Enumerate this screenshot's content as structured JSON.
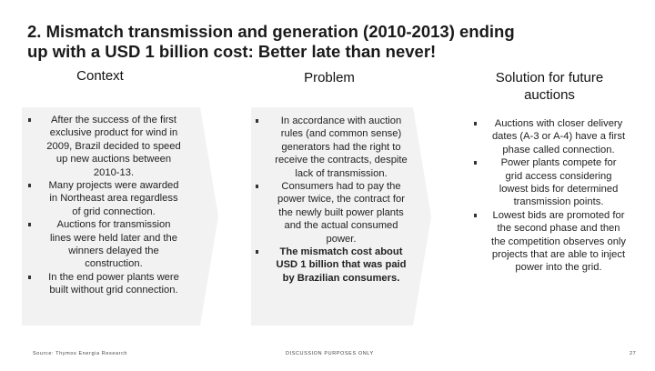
{
  "slide": {
    "title_line1": "2. Mismatch transmission and generation (2010-2013) ending",
    "title_line2": "up with a USD 1 billion cost: Better late than never!",
    "page_number": "27"
  },
  "context": {
    "heading": "Context",
    "bullets": [
      "After the success of the first exclusive product for wind in 2009, Brazil decided to speed up new auctions between 2010-13.",
      "Many projects were awarded in Northeast area regardless of grid connection.",
      "Auctions for transmission lines were held later and the winners delayed the construction.",
      "In the end power plants were built without grid connection."
    ]
  },
  "problem": {
    "heading": "Problem",
    "bullets": [
      "In accordance with auction rules (and common sense) generators had the right to receive the contracts, despite lack of transmission.",
      "Consumers had to pay the power twice, the contract for the newly built power plants and the actual consumed power.",
      "The mismatch cost about USD 1 billion that was paid by Brazilian consumers."
    ]
  },
  "solution": {
    "heading_line1": "Solution for future",
    "heading_line2": "auctions",
    "bullets": [
      "Auctions with closer delivery dates (A-3 or A-4) have a first phase called connection.",
      "Power plants compete for grid access considering lowest bids for determined transmission points.",
      "Lowest bids are promoted for the second phase and then the competition observes only projects that are able to inject power into the grid."
    ]
  },
  "footer": {
    "source": "Source: Thymos Energia Research",
    "center": "DISCUSSION PURPOSES ONLY"
  }
}
